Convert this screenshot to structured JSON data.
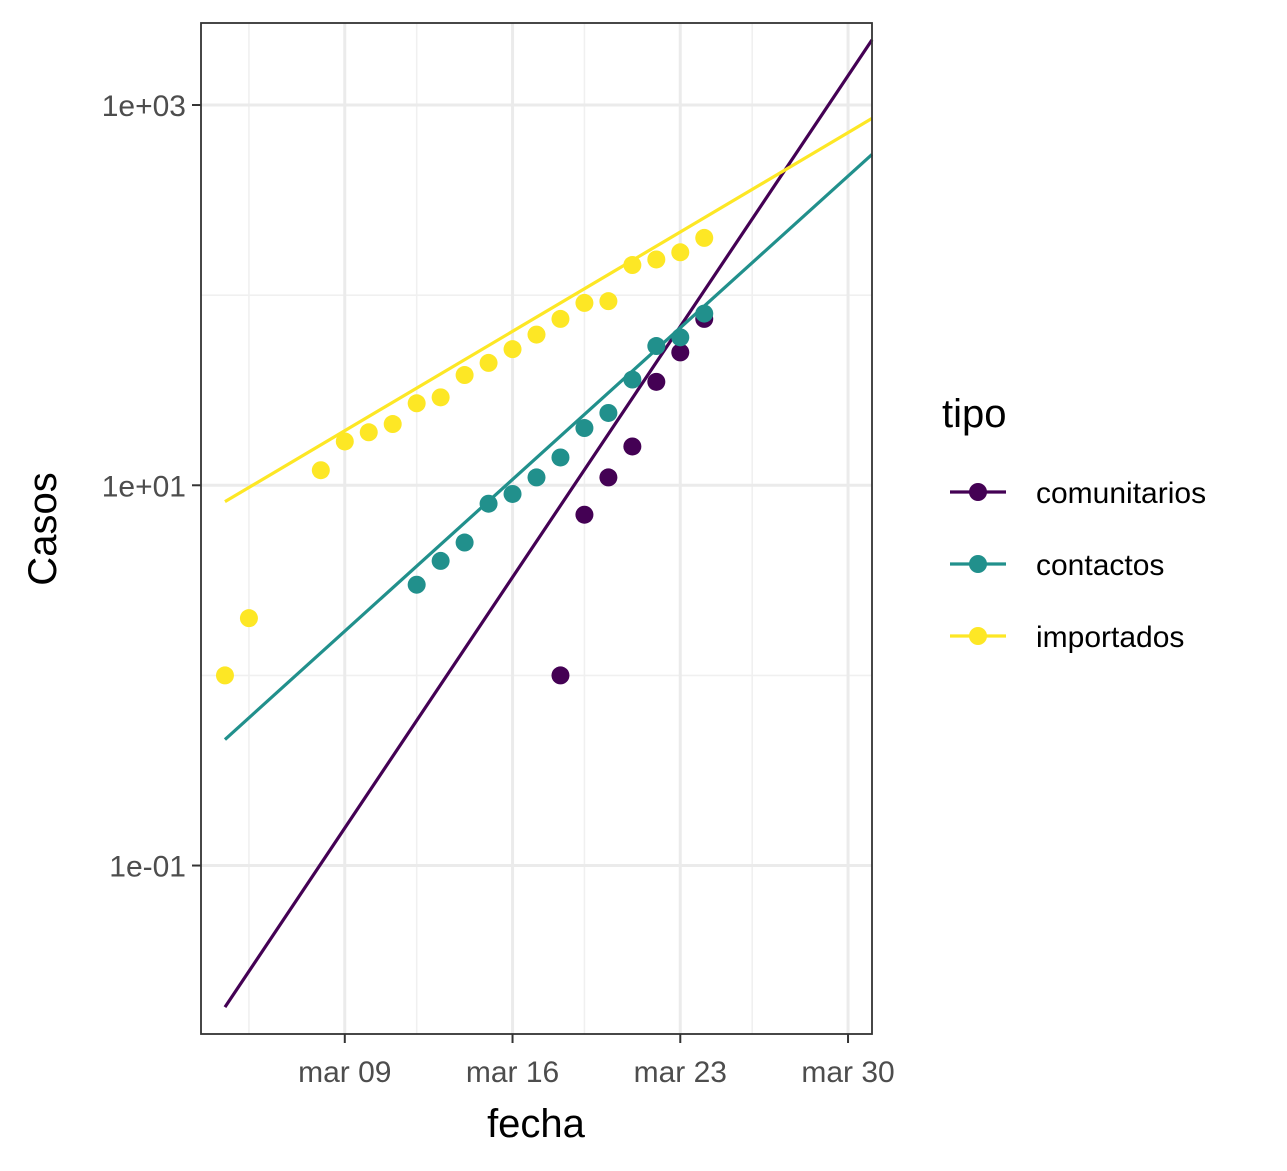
{
  "chart_data": {
    "type": "scatter",
    "xlabel": "fecha",
    "ylabel": "Casos",
    "x_scale": "date",
    "y_scale": "log10",
    "xlim": [
      "2020-03-03",
      "2020-03-31"
    ],
    "ylim": [
      0.013,
      2700
    ],
    "x_ticks": [
      {
        "value": "2020-03-09",
        "label": "mar 09"
      },
      {
        "value": "2020-03-16",
        "label": "mar 16"
      },
      {
        "value": "2020-03-23",
        "label": "mar 23"
      },
      {
        "value": "2020-03-30",
        "label": "mar 30"
      }
    ],
    "x_minor_ticks": [
      "2020-03-05",
      "2020-03-12",
      "2020-03-19",
      "2020-03-26"
    ],
    "y_ticks": [
      {
        "value": 0.1,
        "label": "1e-01"
      },
      {
        "value": 10,
        "label": "1e+01"
      },
      {
        "value": 1000,
        "label": "1e+03"
      }
    ],
    "y_minor_ticks": [
      1,
      100
    ],
    "grid": true,
    "legend": {
      "title": "tipo",
      "position": "right"
    },
    "series": [
      {
        "name": "comunitarios",
        "color": "#440154",
        "points": [
          {
            "x": "2020-03-18",
            "y": 1
          },
          {
            "x": "2020-03-19",
            "y": 7
          },
          {
            "x": "2020-03-20",
            "y": 11
          },
          {
            "x": "2020-03-21",
            "y": 16
          },
          {
            "x": "2020-03-22",
            "y": 35
          },
          {
            "x": "2020-03-23",
            "y": 50
          },
          {
            "x": "2020-03-24",
            "y": 75
          }
        ],
        "fit": [
          {
            "x": "2020-03-04",
            "y": 0.018
          },
          {
            "x": "2020-03-31",
            "y": 2200
          }
        ]
      },
      {
        "name": "contactos",
        "color": "#21908C",
        "points": [
          {
            "x": "2020-03-12",
            "y": 3
          },
          {
            "x": "2020-03-13",
            "y": 4
          },
          {
            "x": "2020-03-14",
            "y": 5
          },
          {
            "x": "2020-03-15",
            "y": 8
          },
          {
            "x": "2020-03-16",
            "y": 9
          },
          {
            "x": "2020-03-17",
            "y": 11
          },
          {
            "x": "2020-03-18",
            "y": 14
          },
          {
            "x": "2020-03-19",
            "y": 20
          },
          {
            "x": "2020-03-20",
            "y": 24
          },
          {
            "x": "2020-03-21",
            "y": 36
          },
          {
            "x": "2020-03-22",
            "y": 54
          },
          {
            "x": "2020-03-23",
            "y": 60
          },
          {
            "x": "2020-03-24",
            "y": 80
          }
        ],
        "fit": [
          {
            "x": "2020-03-04",
            "y": 0.46
          },
          {
            "x": "2020-03-31",
            "y": 550
          }
        ]
      },
      {
        "name": "importados",
        "color": "#FDE725",
        "points": [
          {
            "x": "2020-03-04",
            "y": 1
          },
          {
            "x": "2020-03-05",
            "y": 2
          },
          {
            "x": "2020-03-08",
            "y": 12
          },
          {
            "x": "2020-03-09",
            "y": 17
          },
          {
            "x": "2020-03-10",
            "y": 19
          },
          {
            "x": "2020-03-11",
            "y": 21
          },
          {
            "x": "2020-03-12",
            "y": 27
          },
          {
            "x": "2020-03-13",
            "y": 29
          },
          {
            "x": "2020-03-14",
            "y": 38
          },
          {
            "x": "2020-03-15",
            "y": 44
          },
          {
            "x": "2020-03-16",
            "y": 52
          },
          {
            "x": "2020-03-17",
            "y": 62
          },
          {
            "x": "2020-03-18",
            "y": 75
          },
          {
            "x": "2020-03-19",
            "y": 91
          },
          {
            "x": "2020-03-20",
            "y": 93
          },
          {
            "x": "2020-03-21",
            "y": 144
          },
          {
            "x": "2020-03-22",
            "y": 154
          },
          {
            "x": "2020-03-23",
            "y": 168
          },
          {
            "x": "2020-03-24",
            "y": 200
          }
        ],
        "fit": [
          {
            "x": "2020-03-04",
            "y": 8.2
          },
          {
            "x": "2020-03-31",
            "y": 850
          }
        ]
      }
    ]
  }
}
